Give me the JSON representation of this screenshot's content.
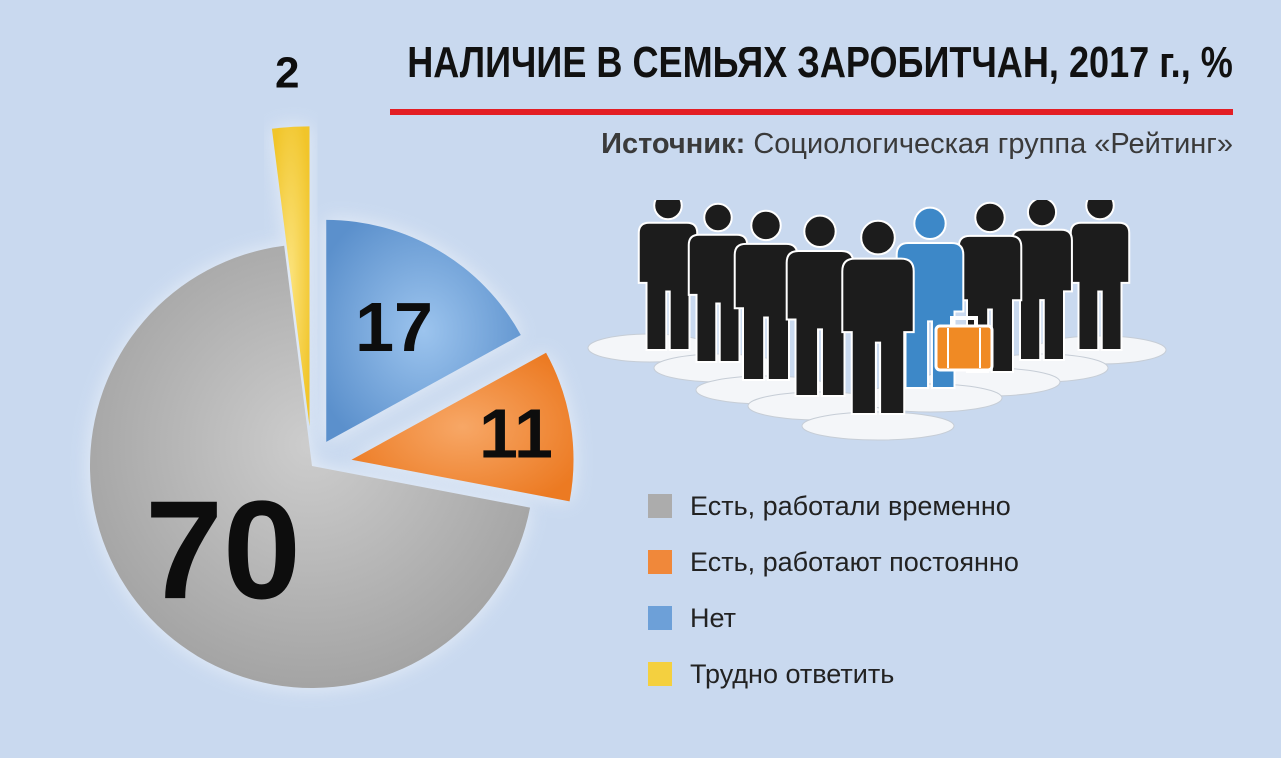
{
  "header": {
    "title": "НАЛИЧИЕ В СЕМЬЯХ ЗАРОБИТЧАН, 2017 г., %",
    "source_label": "Источник:",
    "source_text": "Социологическая группа «Рейтинг»"
  },
  "colors": {
    "background": "#c9d9ef",
    "title_rule": "#e31e24",
    "person_dark": "#1c1c1c",
    "person_highlight": "#3d88c8",
    "suitcase": "#f08a24"
  },
  "illustration": {
    "icons": [
      "crowd-of-people-icon",
      "suitcase-icon"
    ]
  },
  "chart_data": {
    "type": "pie",
    "title": "НАЛИЧИЕ В СЕМЬЯХ ЗАРОБИТЧАН, 2017 г., %",
    "legend_position": "right",
    "slices": [
      {
        "label": "Нет",
        "value": 17,
        "color": "#6da0d8",
        "value_label": "17"
      },
      {
        "label": "Есть, работают постоянно",
        "value": 11,
        "color": "#f0883a",
        "value_label": "11"
      },
      {
        "label": "Есть, работали временно",
        "value": 70,
        "color": "#acacac",
        "value_label": "70"
      },
      {
        "label": "Трудно ответить",
        "value": 2,
        "color": "#f4d03f",
        "value_label": "2"
      }
    ],
    "legend_order": [
      "Есть, работали временно",
      "Есть, работают постоянно",
      "Нет",
      "Трудно ответить"
    ]
  }
}
